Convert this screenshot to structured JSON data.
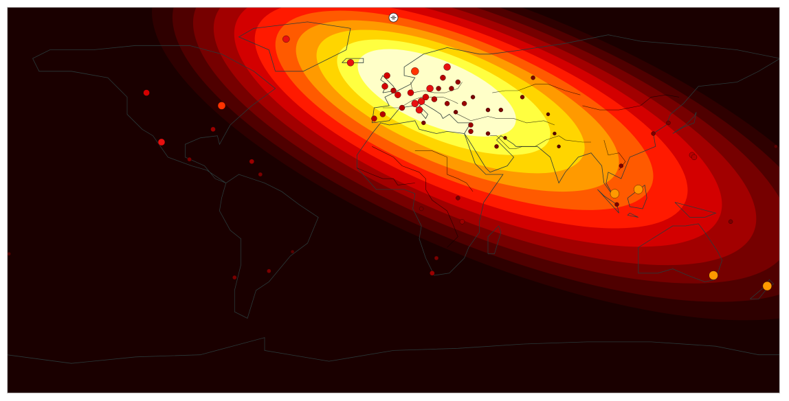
{
  "map": {
    "projection": "equirectangular",
    "lon_range": [
      -180,
      180
    ],
    "lat_range": [
      -90,
      90
    ],
    "background_color": "#1a0000",
    "coastline_color": "#2a3a3a",
    "border_color": "#000000",
    "colormap": "hot",
    "heat_levels": [
      "#2e0000",
      "#4f0000",
      "#760000",
      "#a20000",
      "#d30000",
      "#ff1a00",
      "#ff5a00",
      "#ff9a00",
      "#ffd500",
      "#ffff40",
      "#ffffc8"
    ],
    "heat_center": {
      "lon": 17,
      "lat": 52
    },
    "marker_symbol": "white-circle-icon"
  },
  "points": [
    {
      "lon": -179,
      "lat": -25,
      "level": 1
    },
    {
      "lon": -115,
      "lat": 50,
      "level": 5
    },
    {
      "lon": -108,
      "lat": 27,
      "level": 6
    },
    {
      "lon": -80,
      "lat": 44,
      "level": 7
    },
    {
      "lon": -84,
      "lat": 33,
      "level": 3
    },
    {
      "lon": -66,
      "lat": 18,
      "level": 3
    },
    {
      "lon": -62,
      "lat": 12,
      "level": 2
    },
    {
      "lon": -47,
      "lat": -24,
      "level": 1
    },
    {
      "lon": -58,
      "lat": -33,
      "level": 2
    },
    {
      "lon": -74,
      "lat": -36,
      "level": 2
    },
    {
      "lon": -95,
      "lat": 19,
      "level": 2
    },
    {
      "lon": -4,
      "lat": 53,
      "level": 5
    },
    {
      "lon": 0,
      "lat": 51,
      "level": 4
    },
    {
      "lon": 2,
      "lat": 49,
      "level": 5
    },
    {
      "lon": 8,
      "lat": 50,
      "level": 5
    },
    {
      "lon": 10,
      "lat": 45,
      "level": 6
    },
    {
      "lon": 13,
      "lat": 46,
      "level": 6
    },
    {
      "lon": 15,
      "lat": 48,
      "level": 5
    },
    {
      "lon": 17,
      "lat": 52,
      "level": 6
    },
    {
      "lon": 19,
      "lat": 47,
      "level": 4
    },
    {
      "lon": 21,
      "lat": 52,
      "level": 3
    },
    {
      "lon": 23,
      "lat": 57,
      "level": 4
    },
    {
      "lon": 25,
      "lat": 45,
      "level": 3
    },
    {
      "lon": 27,
      "lat": 52,
      "level": 3
    },
    {
      "lon": 29,
      "lat": 41,
      "level": 2
    },
    {
      "lon": 30,
      "lat": 55,
      "level": 3
    },
    {
      "lon": -5,
      "lat": 40,
      "level": 4
    },
    {
      "lon": -9,
      "lat": 38,
      "level": 4
    },
    {
      "lon": 12,
      "lat": 42,
      "level": 6
    },
    {
      "lon": 4,
      "lat": 43,
      "level": 4
    },
    {
      "lon": 37,
      "lat": 48,
      "level": 2
    },
    {
      "lon": 44,
      "lat": 42,
      "level": 2
    },
    {
      "lon": 50,
      "lat": 42,
      "level": 2
    },
    {
      "lon": 36,
      "lat": 32,
      "level": 3
    },
    {
      "lon": 36,
      "lat": 35,
      "level": 3
    },
    {
      "lon": 44,
      "lat": 31,
      "level": 2
    },
    {
      "lon": 52,
      "lat": 29,
      "level": 1
    },
    {
      "lon": 48,
      "lat": 25,
      "level": 2
    },
    {
      "lon": 72,
      "lat": 40,
      "level": 1
    },
    {
      "lon": 75,
      "lat": 31,
      "level": 1
    },
    {
      "lon": 77,
      "lat": 25,
      "level": 1
    },
    {
      "lon": 65,
      "lat": 57,
      "level": 2
    },
    {
      "lon": 106,
      "lat": 16,
      "level": 2
    },
    {
      "lon": 103,
      "lat": 3,
      "level": 9
    },
    {
      "lon": 114,
      "lat": 5,
      "level": 9
    },
    {
      "lon": 121,
      "lat": 31,
      "level": 2
    },
    {
      "lon": 128,
      "lat": 36,
      "level": 2
    },
    {
      "lon": 139,
      "lat": 21,
      "level": 4
    },
    {
      "lon": 140,
      "lat": 20,
      "level": 4
    },
    {
      "lon": 104,
      "lat": -2,
      "level": 2
    },
    {
      "lon": 149,
      "lat": -35,
      "level": 9
    },
    {
      "lon": 174,
      "lat": -40,
      "level": 9
    },
    {
      "lon": 157,
      "lat": -10,
      "level": 2
    },
    {
      "lon": 178,
      "lat": 25,
      "level": 1
    },
    {
      "lon": 13,
      "lat": -4,
      "level": 2
    },
    {
      "lon": 18,
      "lat": -34,
      "level": 3
    },
    {
      "lon": 20,
      "lat": -27,
      "level": 2
    },
    {
      "lon": 32,
      "lat": -10,
      "level": 3
    },
    {
      "lon": 30,
      "lat": 1,
      "level": 2
    },
    {
      "lon": -50,
      "lat": 75,
      "level": 6
    },
    {
      "lon": 10,
      "lat": 60,
      "level": 7
    },
    {
      "lon": 25,
      "lat": 62,
      "level": 6
    },
    {
      "lon": 33,
      "lat": 45,
      "level": 3
    },
    {
      "lon": 60,
      "lat": 48,
      "level": 2
    },
    {
      "lon": -3,
      "lat": 58,
      "level": 5
    },
    {
      "lon": -20,
      "lat": 64,
      "level": 6
    },
    {
      "lon": 14,
      "lat": 36,
      "level": 2
    }
  ],
  "marker": {
    "lon": 0,
    "lat": 85
  }
}
